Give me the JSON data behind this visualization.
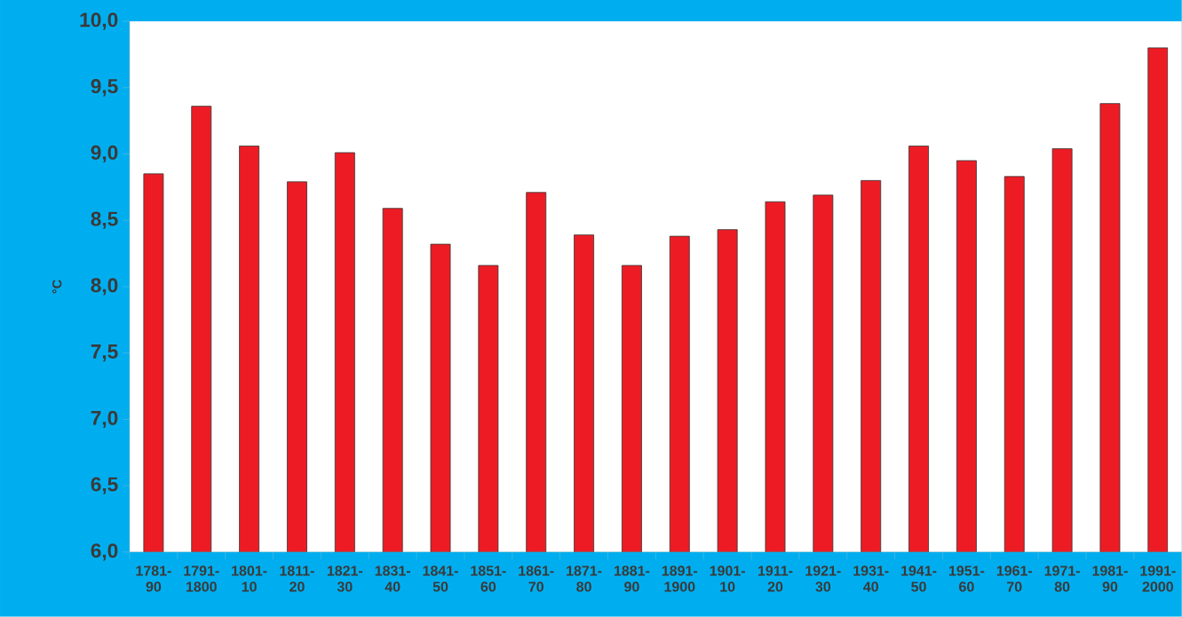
{
  "chart_data": {
    "type": "bar",
    "ylabel": "°C",
    "categories": [
      "1781-90",
      "1791-1800",
      "1801-10",
      "1811-20",
      "1821-30",
      "1831-40",
      "1841-50",
      "1851-60",
      "1861-70",
      "1871-80",
      "1881-90",
      "1891-1900",
      "1901-10",
      "1911-20",
      "1921-30",
      "1931-40",
      "1941-50",
      "1951-60",
      "1961-70",
      "1971-80",
      "1981-90",
      "1991-2000"
    ],
    "values": [
      8.85,
      9.36,
      9.06,
      8.79,
      9.01,
      8.59,
      8.32,
      8.16,
      8.71,
      8.39,
      8.16,
      8.38,
      8.43,
      8.64,
      8.69,
      8.8,
      9.06,
      8.95,
      8.83,
      9.04,
      9.38,
      9.8
    ],
    "color": "#ed1c24",
    "ylim": [
      6.0,
      10.0
    ],
    "yticks": [
      {
        "value": 6.0,
        "label": "6,0"
      },
      {
        "value": 6.5,
        "label": "6,5"
      },
      {
        "value": 7.0,
        "label": "7,0"
      },
      {
        "value": 7.5,
        "label": "7,5"
      },
      {
        "value": 8.0,
        "label": "8,0"
      },
      {
        "value": 8.5,
        "label": "8,5"
      },
      {
        "value": 9.0,
        "label": "9,0"
      },
      {
        "value": 9.5,
        "label": "9,5"
      },
      {
        "value": 10.0,
        "label": "10,0"
      }
    ],
    "grid": false
  }
}
